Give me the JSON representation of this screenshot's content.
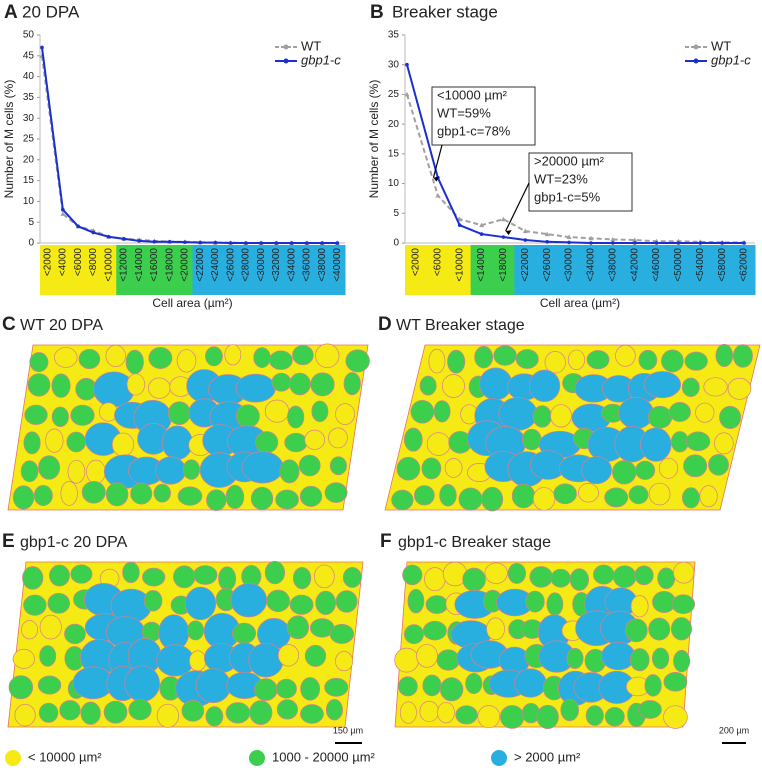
{
  "chart_data": [
    {
      "type": "line",
      "label": "A",
      "title": "20 DPA",
      "y_label": "Number of M cells (%)",
      "x_label": "Cell area (µm²)",
      "categories": [
        "<2000",
        "<4000",
        "<6000",
        "<8000",
        "<10000",
        "<12000",
        "<14000",
        "<16000",
        "<18000",
        "<20000",
        "<22000",
        "<24000",
        "<26000",
        "<28000",
        "<30000",
        "<32000",
        "<34000",
        "<36000",
        "<38000",
        "<40000"
      ],
      "category_colors": [
        "#f5ea14",
        "#f5ea14",
        "#f5ea14",
        "#f5ea14",
        "#f5ea14",
        "#3ccf4e",
        "#3ccf4e",
        "#3ccf4e",
        "#3ccf4e",
        "#3ccf4e",
        "#29aee0",
        "#29aee0",
        "#29aee0",
        "#29aee0",
        "#29aee0",
        "#29aee0",
        "#29aee0",
        "#29aee0",
        "#29aee0",
        "#29aee0"
      ],
      "series": [
        {
          "name": "WT",
          "color": "#a0a0a0",
          "marker": "triangle",
          "dashed": true,
          "values": [
            45,
            7,
            4,
            3,
            1.5,
            1,
            0.8,
            0.5,
            0.3,
            0.3,
            0.2,
            0.1,
            0.1,
            0,
            0,
            0,
            0,
            0,
            0,
            0
          ]
        },
        {
          "name": "gbp1-c",
          "color": "#1a2fd0",
          "marker": "circle",
          "dashed": false,
          "values": [
            47,
            8,
            4,
            2.5,
            1.5,
            1,
            0.5,
            0.3,
            0.3,
            0.2,
            0.1,
            0.1,
            0,
            0,
            0,
            0,
            0,
            0,
            0,
            0
          ]
        }
      ],
      "ylim": [
        0,
        50
      ],
      "yticks": [
        0,
        5,
        10,
        15,
        20,
        25,
        30,
        35,
        40,
        45,
        50
      ],
      "legend": "upper right",
      "annotations": []
    },
    {
      "type": "line",
      "label": "B",
      "title": "Breaker stage",
      "y_label": "Number of M cells (%)",
      "x_label": "Cell area (µm²)",
      "categories": [
        "<2000",
        "<6000",
        "<10000",
        "<14000",
        "<18000",
        "<22000",
        "<26000",
        "<30000",
        "<34000",
        "<38000",
        "<42000",
        "<46000",
        "<50000",
        "<54000",
        "<58000",
        "<62000"
      ],
      "category_colors": [
        "#f5ea14",
        "#f5ea14",
        "#f5ea14",
        "#3ccf4e",
        "#3ccf4e",
        "#29aee0",
        "#29aee0",
        "#29aee0",
        "#29aee0",
        "#29aee0",
        "#29aee0",
        "#29aee0",
        "#29aee0",
        "#29aee0",
        "#29aee0",
        "#29aee0"
      ],
      "series": [
        {
          "name": "WT",
          "color": "#a0a0a0",
          "marker": "triangle",
          "dashed": true,
          "values": [
            25,
            8,
            4,
            3,
            4,
            2,
            1.5,
            1,
            0.8,
            0.6,
            0.5,
            0.3,
            0.3,
            0.2,
            0.1,
            0.1
          ]
        },
        {
          "name": "gbp1-c",
          "color": "#1a2fd0",
          "marker": "circle",
          "dashed": false,
          "values": [
            30,
            11,
            3,
            1.5,
            1,
            0.5,
            0.2,
            0.1,
            0,
            0,
            0,
            0,
            0,
            0,
            0,
            0
          ]
        }
      ],
      "ylim": [
        0,
        35
      ],
      "yticks": [
        0,
        5,
        10,
        15,
        20,
        25,
        30,
        35
      ],
      "legend": "upper right",
      "annotations": [
        [
          "<10000 µm²",
          "WT=59%",
          "gbp1-c=78%"
        ],
        [
          ">20000 µm²",
          "WT=23%",
          "gbp1-c=5%"
        ]
      ]
    }
  ],
  "panels": [
    {
      "label": "C",
      "title": "WT 20 DPA"
    },
    {
      "label": "D",
      "title": "WT Breaker stage"
    },
    {
      "label": "E",
      "title": "gbp1-c 20 DPA"
    },
    {
      "label": "F",
      "title": "gbp1-c Breaker stage"
    }
  ],
  "scale_bars": [
    "150 µm",
    "200 µm"
  ],
  "legend": [
    {
      "label": "< 10000 µm²",
      "color": "#f5ea14"
    },
    {
      "label": "1000 - 20000 µm²",
      "color": "#3ccf4e"
    },
    {
      "label": "> 2000 µm²",
      "color": "#29aee0"
    }
  ]
}
